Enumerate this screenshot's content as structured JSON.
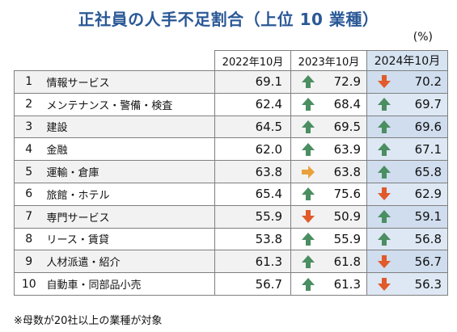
{
  "title": "正社員の人手不足割合（上位 10 業種）",
  "unit": "(%)",
  "note": "※母数が20社以上の業種が対象",
  "colors": {
    "up": "#4a8e61",
    "down": "#e05a2a",
    "flat": "#e9a13b",
    "title": "#2a5896",
    "highlight": "#d6e3f1"
  },
  "chart_data": {
    "type": "table",
    "columns": [
      "2022年10月",
      "2023年10月",
      "2024年10月"
    ],
    "rows": [
      {
        "rank": "1",
        "name": "情報サービス",
        "values": [
          "69.1",
          "72.9",
          "70.2"
        ],
        "trend": [
          "up",
          "down"
        ]
      },
      {
        "rank": "2",
        "name": "メンテナンス・警備・検査",
        "values": [
          "62.4",
          "68.4",
          "69.7"
        ],
        "trend": [
          "up",
          "up"
        ]
      },
      {
        "rank": "3",
        "name": "建設",
        "values": [
          "64.5",
          "69.5",
          "69.6"
        ],
        "trend": [
          "up",
          "up"
        ]
      },
      {
        "rank": "4",
        "name": "金融",
        "values": [
          "62.0",
          "63.9",
          "67.1"
        ],
        "trend": [
          "up",
          "up"
        ]
      },
      {
        "rank": "5",
        "name": "運輸・倉庫",
        "values": [
          "63.8",
          "63.8",
          "65.8"
        ],
        "trend": [
          "flat",
          "up"
        ]
      },
      {
        "rank": "6",
        "name": "旅館・ホテル",
        "values": [
          "65.4",
          "75.6",
          "62.9"
        ],
        "trend": [
          "up",
          "down"
        ]
      },
      {
        "rank": "7",
        "name": "専門サービス",
        "values": [
          "55.9",
          "50.9",
          "59.1"
        ],
        "trend": [
          "down",
          "up"
        ]
      },
      {
        "rank": "8",
        "name": "リース・賃貸",
        "values": [
          "53.8",
          "55.9",
          "56.8"
        ],
        "trend": [
          "up",
          "up"
        ]
      },
      {
        "rank": "9",
        "name": "人材派遣・紹介",
        "values": [
          "61.3",
          "61.8",
          "56.7"
        ],
        "trend": [
          "up",
          "down"
        ]
      },
      {
        "rank": "10",
        "name": "自動車・同部品小売",
        "values": [
          "56.7",
          "61.3",
          "56.3"
        ],
        "trend": [
          "up",
          "down"
        ]
      }
    ]
  }
}
